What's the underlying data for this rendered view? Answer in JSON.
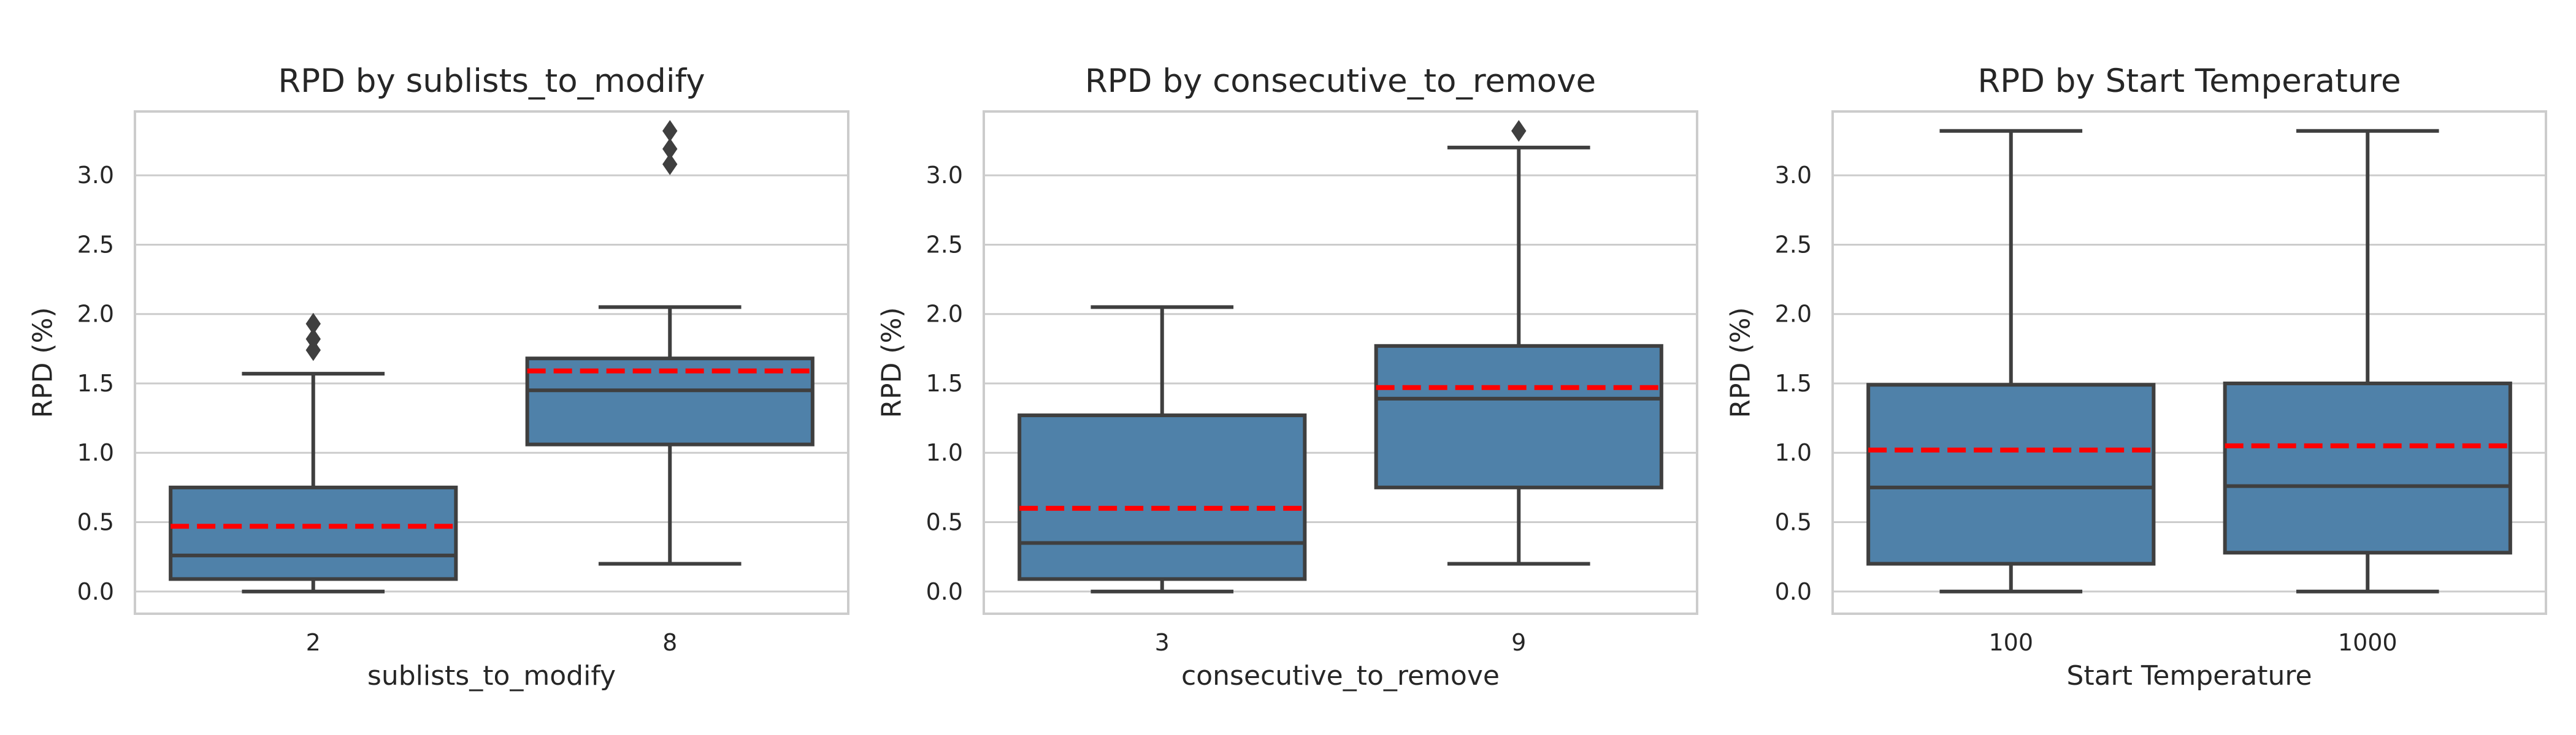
{
  "colors": {
    "box_fill": "#4f81a9",
    "box_edge": "#3f3f3f",
    "mean_line": "#ff0000",
    "grid": "#cccccc",
    "frame": "#cccccc",
    "text": "#262626"
  },
  "chart_data": [
    {
      "type": "box",
      "title": "RPD by sublists_to_modify",
      "xlabel": "sublists_to_modify",
      "ylabel": "RPD (%)",
      "ylim": [
        -0.16,
        3.46
      ],
      "yticks": [
        0.0,
        0.5,
        1.0,
        1.5,
        2.0,
        2.5,
        3.0
      ],
      "ytick_labels": [
        "0.0",
        "0.5",
        "1.0",
        "1.5",
        "2.0",
        "2.5",
        "3.0"
      ],
      "grid": true,
      "mean_line": "red dashed",
      "categories": [
        "2",
        "8"
      ],
      "boxes": [
        {
          "category": "2",
          "whisker_low": 0.0,
          "q1": 0.09,
          "median": 0.26,
          "q3": 0.75,
          "whisker_high": 1.57,
          "mean": 0.47,
          "outliers": [
            1.74,
            1.82,
            1.93
          ]
        },
        {
          "category": "8",
          "whisker_low": 0.2,
          "q1": 1.06,
          "median": 1.45,
          "q3": 1.68,
          "whisker_high": 2.05,
          "mean": 1.59,
          "outliers": [
            3.08,
            3.19,
            3.32
          ]
        }
      ]
    },
    {
      "type": "box",
      "title": "RPD by consecutive_to_remove",
      "xlabel": "consecutive_to_remove",
      "ylabel": "RPD (%)",
      "ylim": [
        -0.16,
        3.46
      ],
      "yticks": [
        0.0,
        0.5,
        1.0,
        1.5,
        2.0,
        2.5,
        3.0
      ],
      "ytick_labels": [
        "0.0",
        "0.5",
        "1.0",
        "1.5",
        "2.0",
        "2.5",
        "3.0"
      ],
      "grid": true,
      "mean_line": "red dashed",
      "categories": [
        "3",
        "9"
      ],
      "boxes": [
        {
          "category": "3",
          "whisker_low": 0.0,
          "q1": 0.09,
          "median": 0.35,
          "q3": 1.27,
          "whisker_high": 2.05,
          "mean": 0.6,
          "outliers": []
        },
        {
          "category": "9",
          "whisker_low": 0.2,
          "q1": 0.75,
          "median": 1.39,
          "q3": 1.77,
          "whisker_high": 3.2,
          "mean": 1.47,
          "outliers": [
            3.32
          ]
        }
      ]
    },
    {
      "type": "box",
      "title": "RPD by Start Temperature",
      "xlabel": "Start Temperature",
      "ylabel": "RPD (%)",
      "ylim": [
        -0.16,
        3.46
      ],
      "yticks": [
        0.0,
        0.5,
        1.0,
        1.5,
        2.0,
        2.5,
        3.0
      ],
      "ytick_labels": [
        "0.0",
        "0.5",
        "1.0",
        "1.5",
        "2.0",
        "2.5",
        "3.0"
      ],
      "grid": true,
      "mean_line": "red dashed",
      "categories": [
        "100",
        "1000"
      ],
      "boxes": [
        {
          "category": "100",
          "whisker_low": 0.0,
          "q1": 0.2,
          "median": 0.75,
          "q3": 1.49,
          "whisker_high": 3.32,
          "mean": 1.02,
          "outliers": []
        },
        {
          "category": "1000",
          "whisker_low": 0.0,
          "q1": 0.28,
          "median": 0.76,
          "q3": 1.5,
          "whisker_high": 3.32,
          "mean": 1.05,
          "outliers": []
        }
      ]
    }
  ]
}
